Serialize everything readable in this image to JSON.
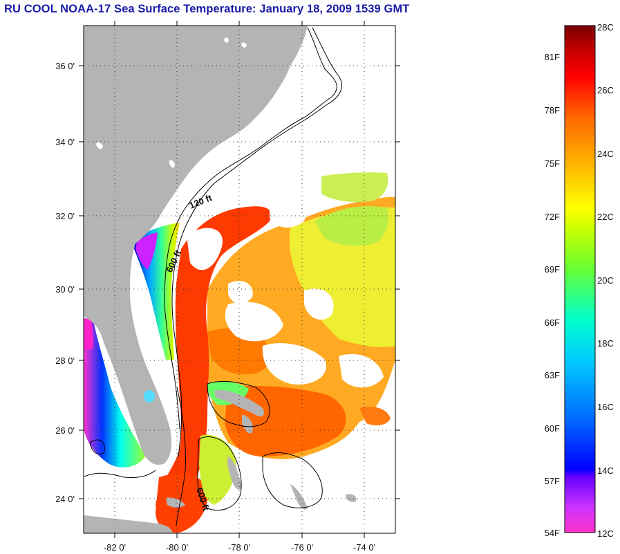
{
  "title": "RU COOL  NOAA-17  Sea Surface Temperature:  January 18, 2009 1539 GMT",
  "map": {
    "latitude_labels": [
      "36 0'",
      "34 0'",
      "32 0'",
      "30 0'",
      "28 0'",
      "26 0'",
      "24 0'"
    ],
    "longitude_labels": [
      "-82 0'",
      "-80 0'",
      "-78 0'",
      "-76 0'",
      "-74 0'"
    ],
    "contour_labels": [
      "120 ft",
      "600 ft",
      "600 ft"
    ],
    "colors": {
      "land": "#b4b4b4",
      "ocean_cloud": "#ffffff",
      "frame": "#000000"
    }
  },
  "colorbar": {
    "fahrenheit_labels": [
      "81F",
      "78F",
      "75F",
      "72F",
      "69F",
      "66F",
      "63F",
      "60F",
      "57F",
      "54F"
    ],
    "celsius_labels": [
      "28C",
      "26C",
      "24C",
      "22C",
      "20C",
      "18C",
      "16C",
      "14C",
      "12C"
    ],
    "range_celsius": [
      12,
      28
    ],
    "stops": [
      "#ff33cc",
      "#9933ff",
      "#0000ff",
      "#0099ff",
      "#00ffff",
      "#33ff99",
      "#ccff00",
      "#ffff00",
      "#ffaa00",
      "#ff5500",
      "#ff0000",
      "#aa0000",
      "#7a0000"
    ]
  }
}
